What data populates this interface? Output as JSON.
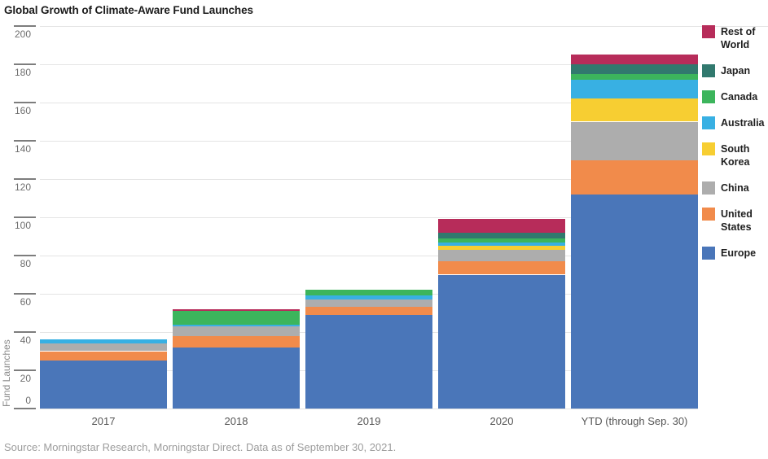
{
  "page": {
    "title": "Global Growth of Climate-Aware Fund Launches",
    "source": "Source: Morningstar Research, Morningstar Direct. Data as of September 30, 2021."
  },
  "chart_data": {
    "type": "bar",
    "stacked": true,
    "stack_order": "bottom-to-top",
    "title": "Global Growth of Climate-Aware Fund Launches",
    "ylabel": "Fund Launches",
    "xlabel": "",
    "ylim": [
      0,
      200
    ],
    "ytick_step": 20,
    "grid": true,
    "legend_position": "right",
    "categories": [
      "2017",
      "2018",
      "2019",
      "2020",
      "YTD (through Sep. 30)"
    ],
    "series": [
      {
        "name": "Europe",
        "color": "#4A76B9",
        "values": [
          25,
          32,
          49,
          70,
          112
        ]
      },
      {
        "name": "United States",
        "color": "#F18B4B",
        "values": [
          5,
          6,
          4,
          7,
          18
        ]
      },
      {
        "name": "China",
        "color": "#ADADAD",
        "values": [
          4,
          5,
          4,
          6,
          20
        ]
      },
      {
        "name": "South Korea",
        "color": "#F7CE32",
        "values": [
          0,
          0,
          0,
          2,
          12
        ]
      },
      {
        "name": "Australia",
        "color": "#38B0E3",
        "values": [
          2,
          1,
          2,
          2,
          10
        ]
      },
      {
        "name": "Canada",
        "color": "#3CB55C",
        "values": [
          0,
          7,
          3,
          2,
          3
        ]
      },
      {
        "name": "Japan",
        "color": "#31796E",
        "values": [
          0,
          0,
          0,
          3,
          5
        ]
      },
      {
        "name": "Rest of World",
        "color": "#B72C5A",
        "values": [
          0,
          1,
          0,
          7,
          5
        ]
      }
    ]
  }
}
